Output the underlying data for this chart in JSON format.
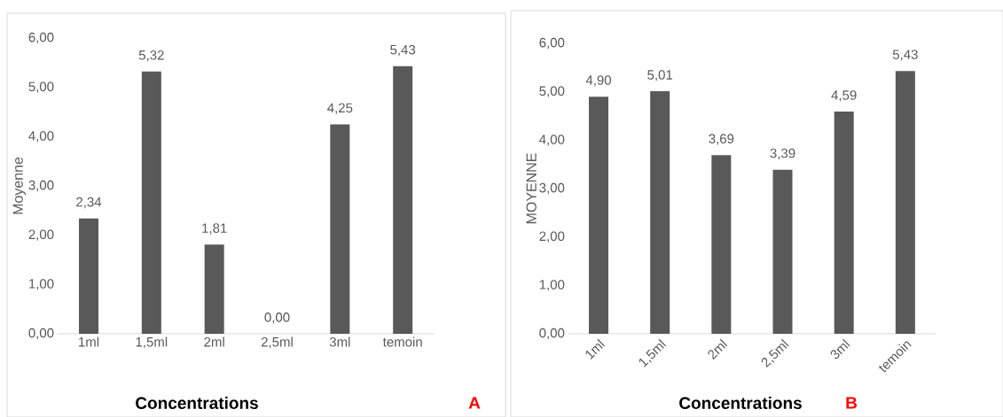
{
  "chart_data": [
    {
      "type": "bar",
      "categories": [
        "1ml",
        "1,5ml",
        "2ml",
        "2,5ml",
        "3ml",
        "temoin"
      ],
      "values": [
        2.34,
        5.32,
        1.81,
        0.0,
        4.25,
        5.43
      ],
      "value_labels": [
        "2,34",
        "5,32",
        "1,81",
        "0,00",
        "4,25",
        "5,43"
      ],
      "color": "#595959",
      "xlabel": "Concentrations",
      "ylabel": "Moyenne",
      "ylim": [
        0,
        6
      ],
      "yticks": [
        {
          "value": 0,
          "label": "0,00"
        },
        {
          "value": 1,
          "label": "1,00"
        },
        {
          "value": 2,
          "label": "2,00"
        },
        {
          "value": 3,
          "label": "3,00"
        },
        {
          "value": 4,
          "label": "4,00"
        },
        {
          "value": 5,
          "label": "5,00"
        },
        {
          "value": 6,
          "label": "6,00"
        }
      ],
      "annotations": [
        "A"
      ]
    },
    {
      "type": "bar",
      "categories": [
        "1ml",
        "1,5ml",
        "2ml",
        "2,5ml",
        "3ml",
        "temoin"
      ],
      "values": [
        4.9,
        5.01,
        3.69,
        3.39,
        4.59,
        5.43
      ],
      "value_labels": [
        "4,90",
        "5,01",
        "3,69",
        "3,39",
        "4,59",
        "5,43"
      ],
      "color": "#595959",
      "xlabel": "Concentrations",
      "ylabel": "MOYENNE",
      "ylim": [
        0,
        6
      ],
      "yticks": [
        {
          "value": 0,
          "label": "0,00"
        },
        {
          "value": 1,
          "label": "1,00"
        },
        {
          "value": 2,
          "label": "2,00"
        },
        {
          "value": 3,
          "label": "3,00"
        },
        {
          "value": 4,
          "label": "4,00"
        },
        {
          "value": 5,
          "label": "5,00"
        },
        {
          "value": 6,
          "label": "6,00"
        }
      ],
      "annotations": [
        "B"
      ]
    }
  ]
}
